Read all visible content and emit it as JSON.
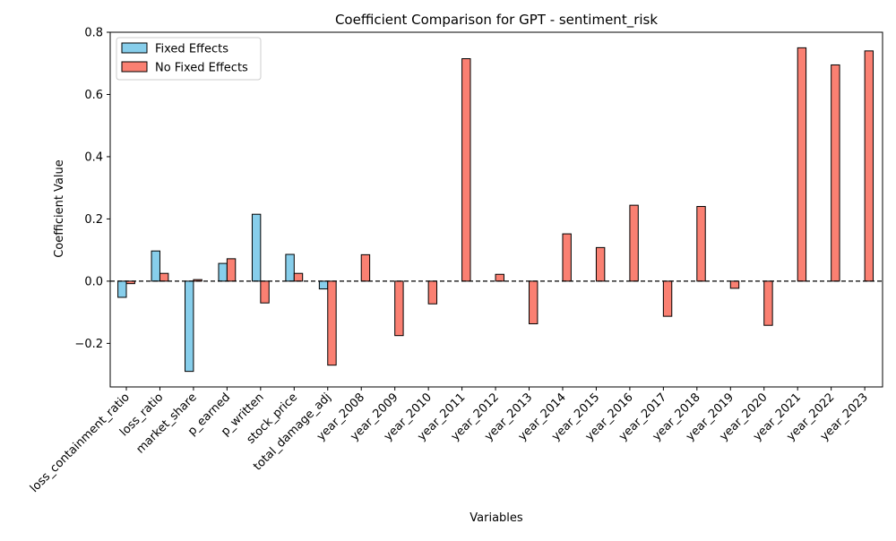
{
  "chart_data": {
    "type": "bar",
    "title": "Coefficient Comparison for GPT - sentiment_risk",
    "xlabel": "Variables",
    "ylabel": "Coefficient Value",
    "ylim": [
      -0.34,
      0.8
    ],
    "yticks": [
      -0.2,
      0.0,
      0.2,
      0.4,
      0.6,
      0.8
    ],
    "ytick_labels": [
      "−0.2",
      "0.0",
      "0.2",
      "0.4",
      "0.6",
      "0.8"
    ],
    "grid": false,
    "legend_position": "top-left",
    "zero_line": "dashed",
    "categories": [
      "loss_containment_ratio",
      "loss_ratio",
      "market_share",
      "p_earned",
      "p_written",
      "stock_price",
      "total_damage_adj",
      "year_2008",
      "year_2009",
      "year_2010",
      "year_2011",
      "year_2012",
      "year_2013",
      "year_2014",
      "year_2015",
      "year_2016",
      "year_2017",
      "year_2018",
      "year_2019",
      "year_2020",
      "year_2021",
      "year_2022",
      "year_2023"
    ],
    "series": [
      {
        "name": "Fixed Effects",
        "color": "#87ceeb",
        "values": [
          -0.052,
          0.097,
          -0.29,
          0.057,
          0.215,
          0.086,
          -0.025,
          0,
          0,
          0,
          0,
          0,
          0,
          0,
          0,
          0,
          0,
          0,
          0,
          0,
          0,
          0,
          0
        ]
      },
      {
        "name": "No Fixed Effects",
        "color": "#fa8072",
        "values": [
          -0.008,
          0.025,
          0.005,
          0.072,
          -0.07,
          0.025,
          -0.27,
          0.085,
          -0.175,
          -0.073,
          0.715,
          0.022,
          -0.137,
          0.152,
          0.108,
          0.244,
          -0.113,
          0.24,
          -0.023,
          -0.142,
          0.75,
          0.695,
          0.74
        ]
      }
    ]
  }
}
